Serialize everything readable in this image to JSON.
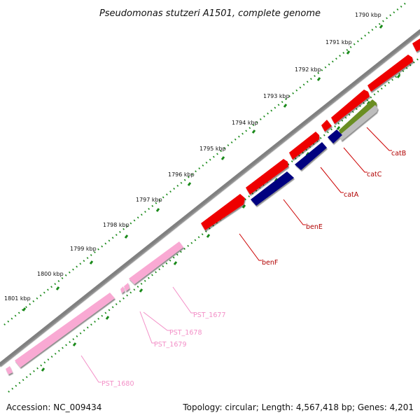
{
  "title": "Pseudomonas stutzeri A1501, complete genome",
  "footer": {
    "accession": "Accession: NC_009434",
    "summary": "Topology: circular; Length: 4,567,418 bp; Genes: 4,201"
  },
  "ticks": [
    {
      "label": "1790 kbp"
    },
    {
      "label": "1791 kbp"
    },
    {
      "label": "1792 kbp"
    },
    {
      "label": "1793 kbp"
    },
    {
      "label": "1794 kbp"
    },
    {
      "label": "1795 kbp"
    },
    {
      "label": "1796 kbp"
    },
    {
      "label": "1797 kbp"
    },
    {
      "label": "1798 kbp"
    },
    {
      "label": "1799 kbp"
    },
    {
      "label": "1800 kbp"
    },
    {
      "label": "1801 kbp"
    }
  ],
  "genes": [
    {
      "label": "catB",
      "color": "#b00000"
    },
    {
      "label": "catC",
      "color": "#b00000"
    },
    {
      "label": "catA",
      "color": "#b00000"
    },
    {
      "label": "benE",
      "color": "#b00000"
    },
    {
      "label": "benF",
      "color": "#b00000"
    },
    {
      "label": "PST_1677",
      "color": "#f38fc7"
    },
    {
      "label": "PST_1678",
      "color": "#f38fc7"
    },
    {
      "label": "PST_1679",
      "color": "#f38fc7"
    },
    {
      "label": "PST_1680",
      "color": "#f38fc7"
    }
  ],
  "colors": {
    "forward_feature": "#ee0000",
    "reverse_feature": "#000080",
    "other_feature": "#6b8e23",
    "pseudogene": "#f9a9d3",
    "backbone": "#808080",
    "ticks": "#1a8a1a"
  }
}
